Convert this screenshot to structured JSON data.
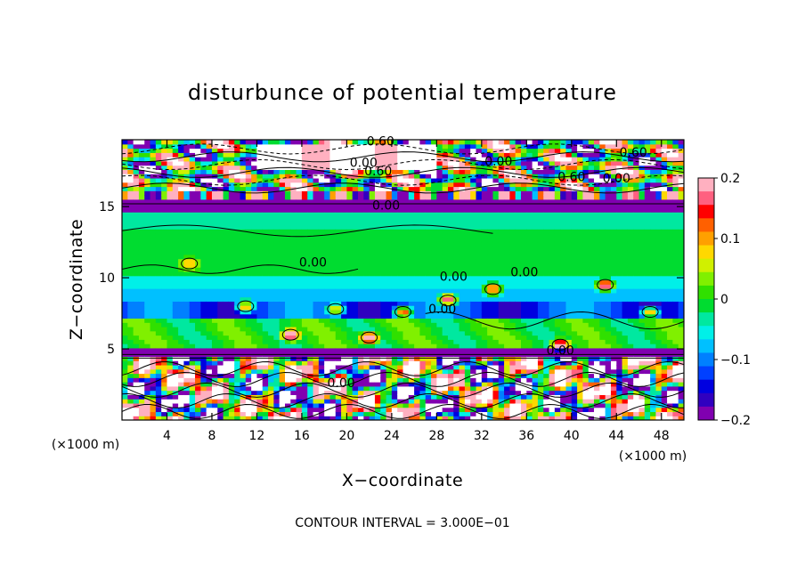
{
  "chart_data": {
    "type": "heatmap",
    "title": "disturbunce of potential temperature",
    "xlabel": "X−coordinate",
    "ylabel": "Z−coordinate",
    "x_unit": "(×1000 m)",
    "y_unit": "(×1000 m)",
    "xlim": [
      0,
      50
    ],
    "ylim": [
      0,
      19.7
    ],
    "x_ticks": [
      4,
      8,
      12,
      16,
      20,
      24,
      28,
      32,
      36,
      40,
      44,
      48
    ],
    "y_ticks": [
      5,
      10,
      15
    ],
    "colorbar": {
      "range": [
        -0.2,
        0.2
      ],
      "ticks": [
        "0.2",
        "0.1",
        "0",
        "−0.1",
        "−0.2"
      ],
      "tick_values": [
        0.2,
        0.1,
        0,
        -0.1,
        -0.2
      ],
      "colors": [
        "#ffb0c0",
        "#ff6080",
        "#ff0000",
        "#ff6000",
        "#ffa000",
        "#ffd800",
        "#d0f000",
        "#80f000",
        "#30e000",
        "#00dc30",
        "#00e8a0",
        "#00f0e8",
        "#00c0ff",
        "#0080ff",
        "#0040ff",
        "#0000e0",
        "#3000c0",
        "#8000b0"
      ]
    },
    "contour_labels": [
      {
        "text": "0.60",
        "x": 23,
        "y": 19.3
      },
      {
        "text": "0.00",
        "x": 21.5,
        "y": 17.8
      },
      {
        "text": "0.60",
        "x": 22.8,
        "y": 17.2
      },
      {
        "text": "0.00",
        "x": 33.5,
        "y": 17.9
      },
      {
        "text": "0.60",
        "x": 45.5,
        "y": 18.5
      },
      {
        "text": "0.60",
        "x": 40,
        "y": 16.8
      },
      {
        "text": "0.00",
        "x": 44,
        "y": 16.7
      },
      {
        "text": "0.00",
        "x": 23.5,
        "y": 14.8
      },
      {
        "text": "0.00",
        "x": 17,
        "y": 10.8
      },
      {
        "text": "0.00",
        "x": 29.5,
        "y": 9.8
      },
      {
        "text": "0.00",
        "x": 35.8,
        "y": 10.1
      },
      {
        "text": "0.00",
        "x": 28.5,
        "y": 7.5
      },
      {
        "text": "0.00",
        "x": 39,
        "y": 4.6
      },
      {
        "text": "0.00",
        "x": 19.5,
        "y": 2.3
      }
    ],
    "contour_interval_label": "CONTOUR INTERVAL = 3.000E−01"
  }
}
